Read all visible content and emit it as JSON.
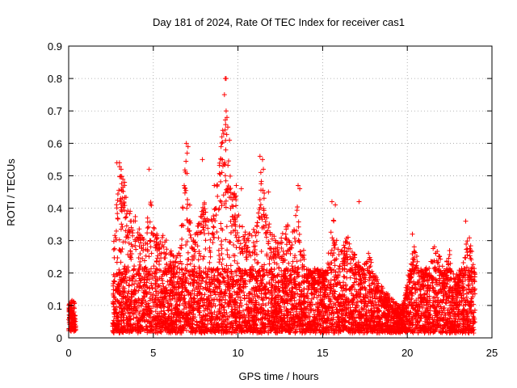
{
  "chart_data": {
    "type": "scatter",
    "title": "Day 181 of 2024, Rate Of TEC Index for receiver cas1",
    "xlabel": "GPS time / hours",
    "ylabel": "ROTI / TECUs",
    "xlim": [
      0,
      25
    ],
    "ylim": [
      0,
      0.9
    ],
    "xticks": [
      0,
      5,
      10,
      15,
      20,
      25
    ],
    "yticks": [
      0,
      0.1,
      0.2,
      0.3,
      0.4,
      0.5,
      0.6,
      0.7,
      0.8,
      0.9
    ],
    "grid": true,
    "marker": "+",
    "color": "#ff0000",
    "envelope": [
      [
        0.0,
        0.1
      ],
      [
        0.15,
        0.12
      ],
      [
        0.35,
        0.11
      ],
      [
        0.45,
        0.0
      ],
      [
        2.6,
        0.02
      ],
      [
        2.65,
        0.3
      ],
      [
        2.8,
        0.4
      ],
      [
        3.0,
        0.53
      ],
      [
        3.2,
        0.51
      ],
      [
        3.5,
        0.43
      ],
      [
        3.8,
        0.36
      ],
      [
        4.0,
        0.38
      ],
      [
        4.2,
        0.34
      ],
      [
        4.5,
        0.3
      ],
      [
        4.8,
        0.44
      ],
      [
        5.0,
        0.4
      ],
      [
        5.3,
        0.3
      ],
      [
        5.6,
        0.32
      ],
      [
        6.0,
        0.28
      ],
      [
        6.3,
        0.24
      ],
      [
        6.6,
        0.3
      ],
      [
        6.9,
        0.58
      ],
      [
        7.1,
        0.44
      ],
      [
        7.4,
        0.3
      ],
      [
        7.7,
        0.38
      ],
      [
        8.0,
        0.42
      ],
      [
        8.3,
        0.36
      ],
      [
        8.6,
        0.4
      ],
      [
        9.0,
        0.58
      ],
      [
        9.2,
        0.7
      ],
      [
        9.4,
        0.6
      ],
      [
        9.6,
        0.46
      ],
      [
        9.9,
        0.44
      ],
      [
        10.2,
        0.35
      ],
      [
        10.5,
        0.32
      ],
      [
        10.8,
        0.34
      ],
      [
        11.1,
        0.36
      ],
      [
        11.4,
        0.5
      ],
      [
        11.7,
        0.4
      ],
      [
        12.0,
        0.34
      ],
      [
        12.3,
        0.3
      ],
      [
        12.6,
        0.32
      ],
      [
        12.9,
        0.36
      ],
      [
        13.2,
        0.32
      ],
      [
        13.5,
        0.42
      ],
      [
        13.8,
        0.3
      ],
      [
        14.1,
        0.22
      ],
      [
        14.4,
        0.2
      ],
      [
        14.7,
        0.24
      ],
      [
        15.0,
        0.2
      ],
      [
        15.3,
        0.24
      ],
      [
        15.6,
        0.38
      ],
      [
        15.9,
        0.3
      ],
      [
        16.2,
        0.28
      ],
      [
        16.5,
        0.32
      ],
      [
        16.8,
        0.28
      ],
      [
        17.1,
        0.24
      ],
      [
        17.4,
        0.22
      ],
      [
        17.7,
        0.28
      ],
      [
        18.0,
        0.2
      ],
      [
        18.3,
        0.16
      ],
      [
        18.6,
        0.14
      ],
      [
        18.9,
        0.12
      ],
      [
        19.2,
        0.1
      ],
      [
        19.5,
        0.09
      ],
      [
        19.8,
        0.1
      ],
      [
        20.1,
        0.2
      ],
      [
        20.4,
        0.3
      ],
      [
        20.7,
        0.22
      ],
      [
        21.0,
        0.2
      ],
      [
        21.3,
        0.24
      ],
      [
        21.6,
        0.3
      ],
      [
        21.9,
        0.26
      ],
      [
        22.2,
        0.22
      ],
      [
        22.5,
        0.28
      ],
      [
        22.8,
        0.18
      ],
      [
        23.1,
        0.2
      ],
      [
        23.4,
        0.26
      ],
      [
        23.6,
        0.34
      ],
      [
        23.8,
        0.28
      ],
      [
        24.0,
        0.2
      ]
    ],
    "outliers": [
      [
        2.85,
        0.54
      ],
      [
        3.0,
        0.54
      ],
      [
        3.1,
        0.52
      ],
      [
        3.3,
        0.48
      ],
      [
        4.75,
        0.52
      ],
      [
        6.95,
        0.6
      ],
      [
        7.05,
        0.59
      ],
      [
        7.0,
        0.57
      ],
      [
        7.9,
        0.55
      ],
      [
        8.6,
        0.47
      ],
      [
        9.0,
        0.59
      ],
      [
        9.05,
        0.62
      ],
      [
        9.1,
        0.64
      ],
      [
        9.15,
        0.63
      ],
      [
        9.2,
        0.75
      ],
      [
        9.25,
        0.8
      ],
      [
        9.3,
        0.8
      ],
      [
        9.3,
        0.7
      ],
      [
        9.35,
        0.68
      ],
      [
        9.4,
        0.65
      ],
      [
        9.5,
        0.61
      ],
      [
        9.05,
        0.51
      ],
      [
        9.9,
        0.47
      ],
      [
        10.2,
        0.46
      ],
      [
        11.3,
        0.56
      ],
      [
        11.45,
        0.55
      ],
      [
        11.5,
        0.52
      ],
      [
        11.35,
        0.51
      ],
      [
        11.8,
        0.45
      ],
      [
        13.55,
        0.47
      ],
      [
        13.65,
        0.46
      ],
      [
        15.55,
        0.42
      ],
      [
        15.75,
        0.41
      ],
      [
        17.15,
        0.42
      ],
      [
        20.3,
        0.32
      ],
      [
        23.45,
        0.36
      ]
    ]
  }
}
